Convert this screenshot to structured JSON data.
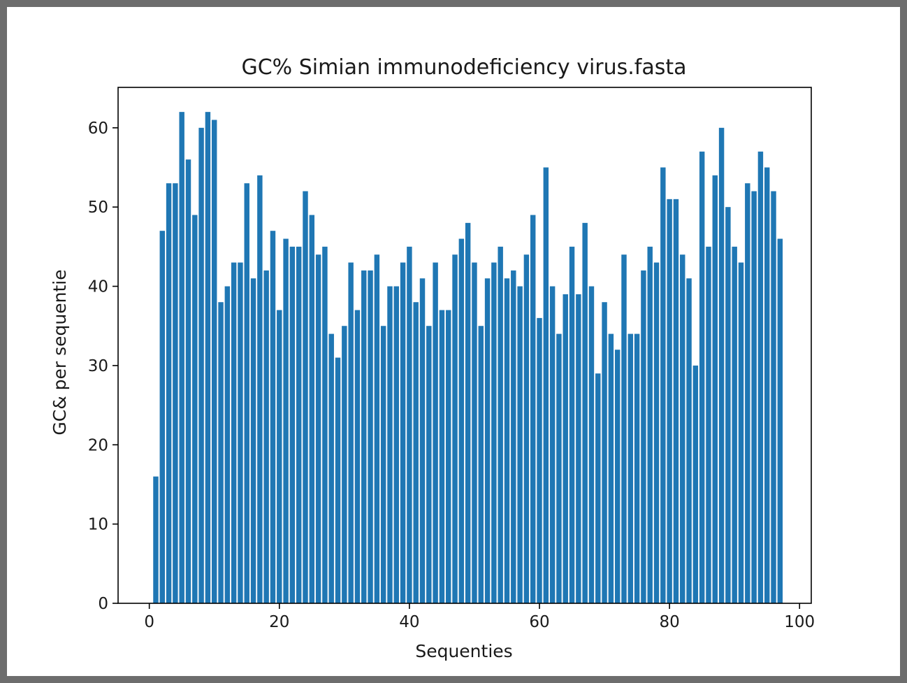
{
  "chart_data": {
    "type": "bar",
    "title": "GC% Simian immunodeficiency virus.fasta",
    "xlabel": "Sequenties",
    "ylabel": "GC& per sequentie",
    "xlim": [
      -4.8,
      101.8
    ],
    "ylim": [
      0,
      65.1
    ],
    "x_ticks": [
      0,
      20,
      40,
      60,
      80,
      100
    ],
    "y_ticks": [
      0,
      10,
      20,
      30,
      40,
      50,
      60
    ],
    "x_tick_labels": [
      "0",
      "20",
      "40",
      "60",
      "80",
      "100"
    ],
    "y_tick_labels": [
      "0",
      "10",
      "20",
      "30",
      "40",
      "50",
      "60"
    ],
    "bar_width": 0.8,
    "color": "#1f77b4",
    "grid": false,
    "legend": "none",
    "x": [
      1,
      2,
      3,
      4,
      5,
      6,
      7,
      8,
      9,
      10,
      11,
      12,
      13,
      14,
      15,
      16,
      17,
      18,
      19,
      20,
      21,
      22,
      23,
      24,
      25,
      26,
      27,
      28,
      29,
      30,
      31,
      32,
      33,
      34,
      35,
      36,
      37,
      38,
      39,
      40,
      41,
      42,
      43,
      44,
      45,
      46,
      47,
      48,
      49,
      50,
      51,
      52,
      53,
      54,
      55,
      56,
      57,
      58,
      59,
      60,
      61,
      62,
      63,
      64,
      65,
      66,
      67,
      68,
      69,
      70,
      71,
      72,
      73,
      74,
      75,
      76,
      77,
      78,
      79,
      80,
      81,
      82,
      83,
      84,
      85,
      86,
      87,
      88,
      89,
      90,
      91,
      92,
      93,
      94,
      95,
      96,
      97
    ],
    "values": [
      16,
      47,
      53,
      53,
      62,
      56,
      49,
      60,
      62,
      61,
      38,
      40,
      43,
      43,
      53,
      41,
      54,
      42,
      47,
      37,
      46,
      45,
      45,
      52,
      49,
      44,
      45,
      34,
      31,
      35,
      43,
      37,
      42,
      42,
      44,
      35,
      40,
      40,
      43,
      45,
      38,
      41,
      35,
      43,
      37,
      37,
      44,
      46,
      48,
      43,
      35,
      41,
      43,
      45,
      41,
      42,
      40,
      44,
      49,
      36,
      55,
      40,
      34,
      39,
      45,
      39,
      48,
      40,
      29,
      38,
      34,
      32,
      44,
      34,
      34,
      42,
      45,
      43,
      55,
      51,
      51,
      44,
      41,
      30,
      57,
      45,
      54,
      60,
      50,
      45,
      43,
      53,
      52,
      57,
      55,
      52,
      46
    ]
  }
}
